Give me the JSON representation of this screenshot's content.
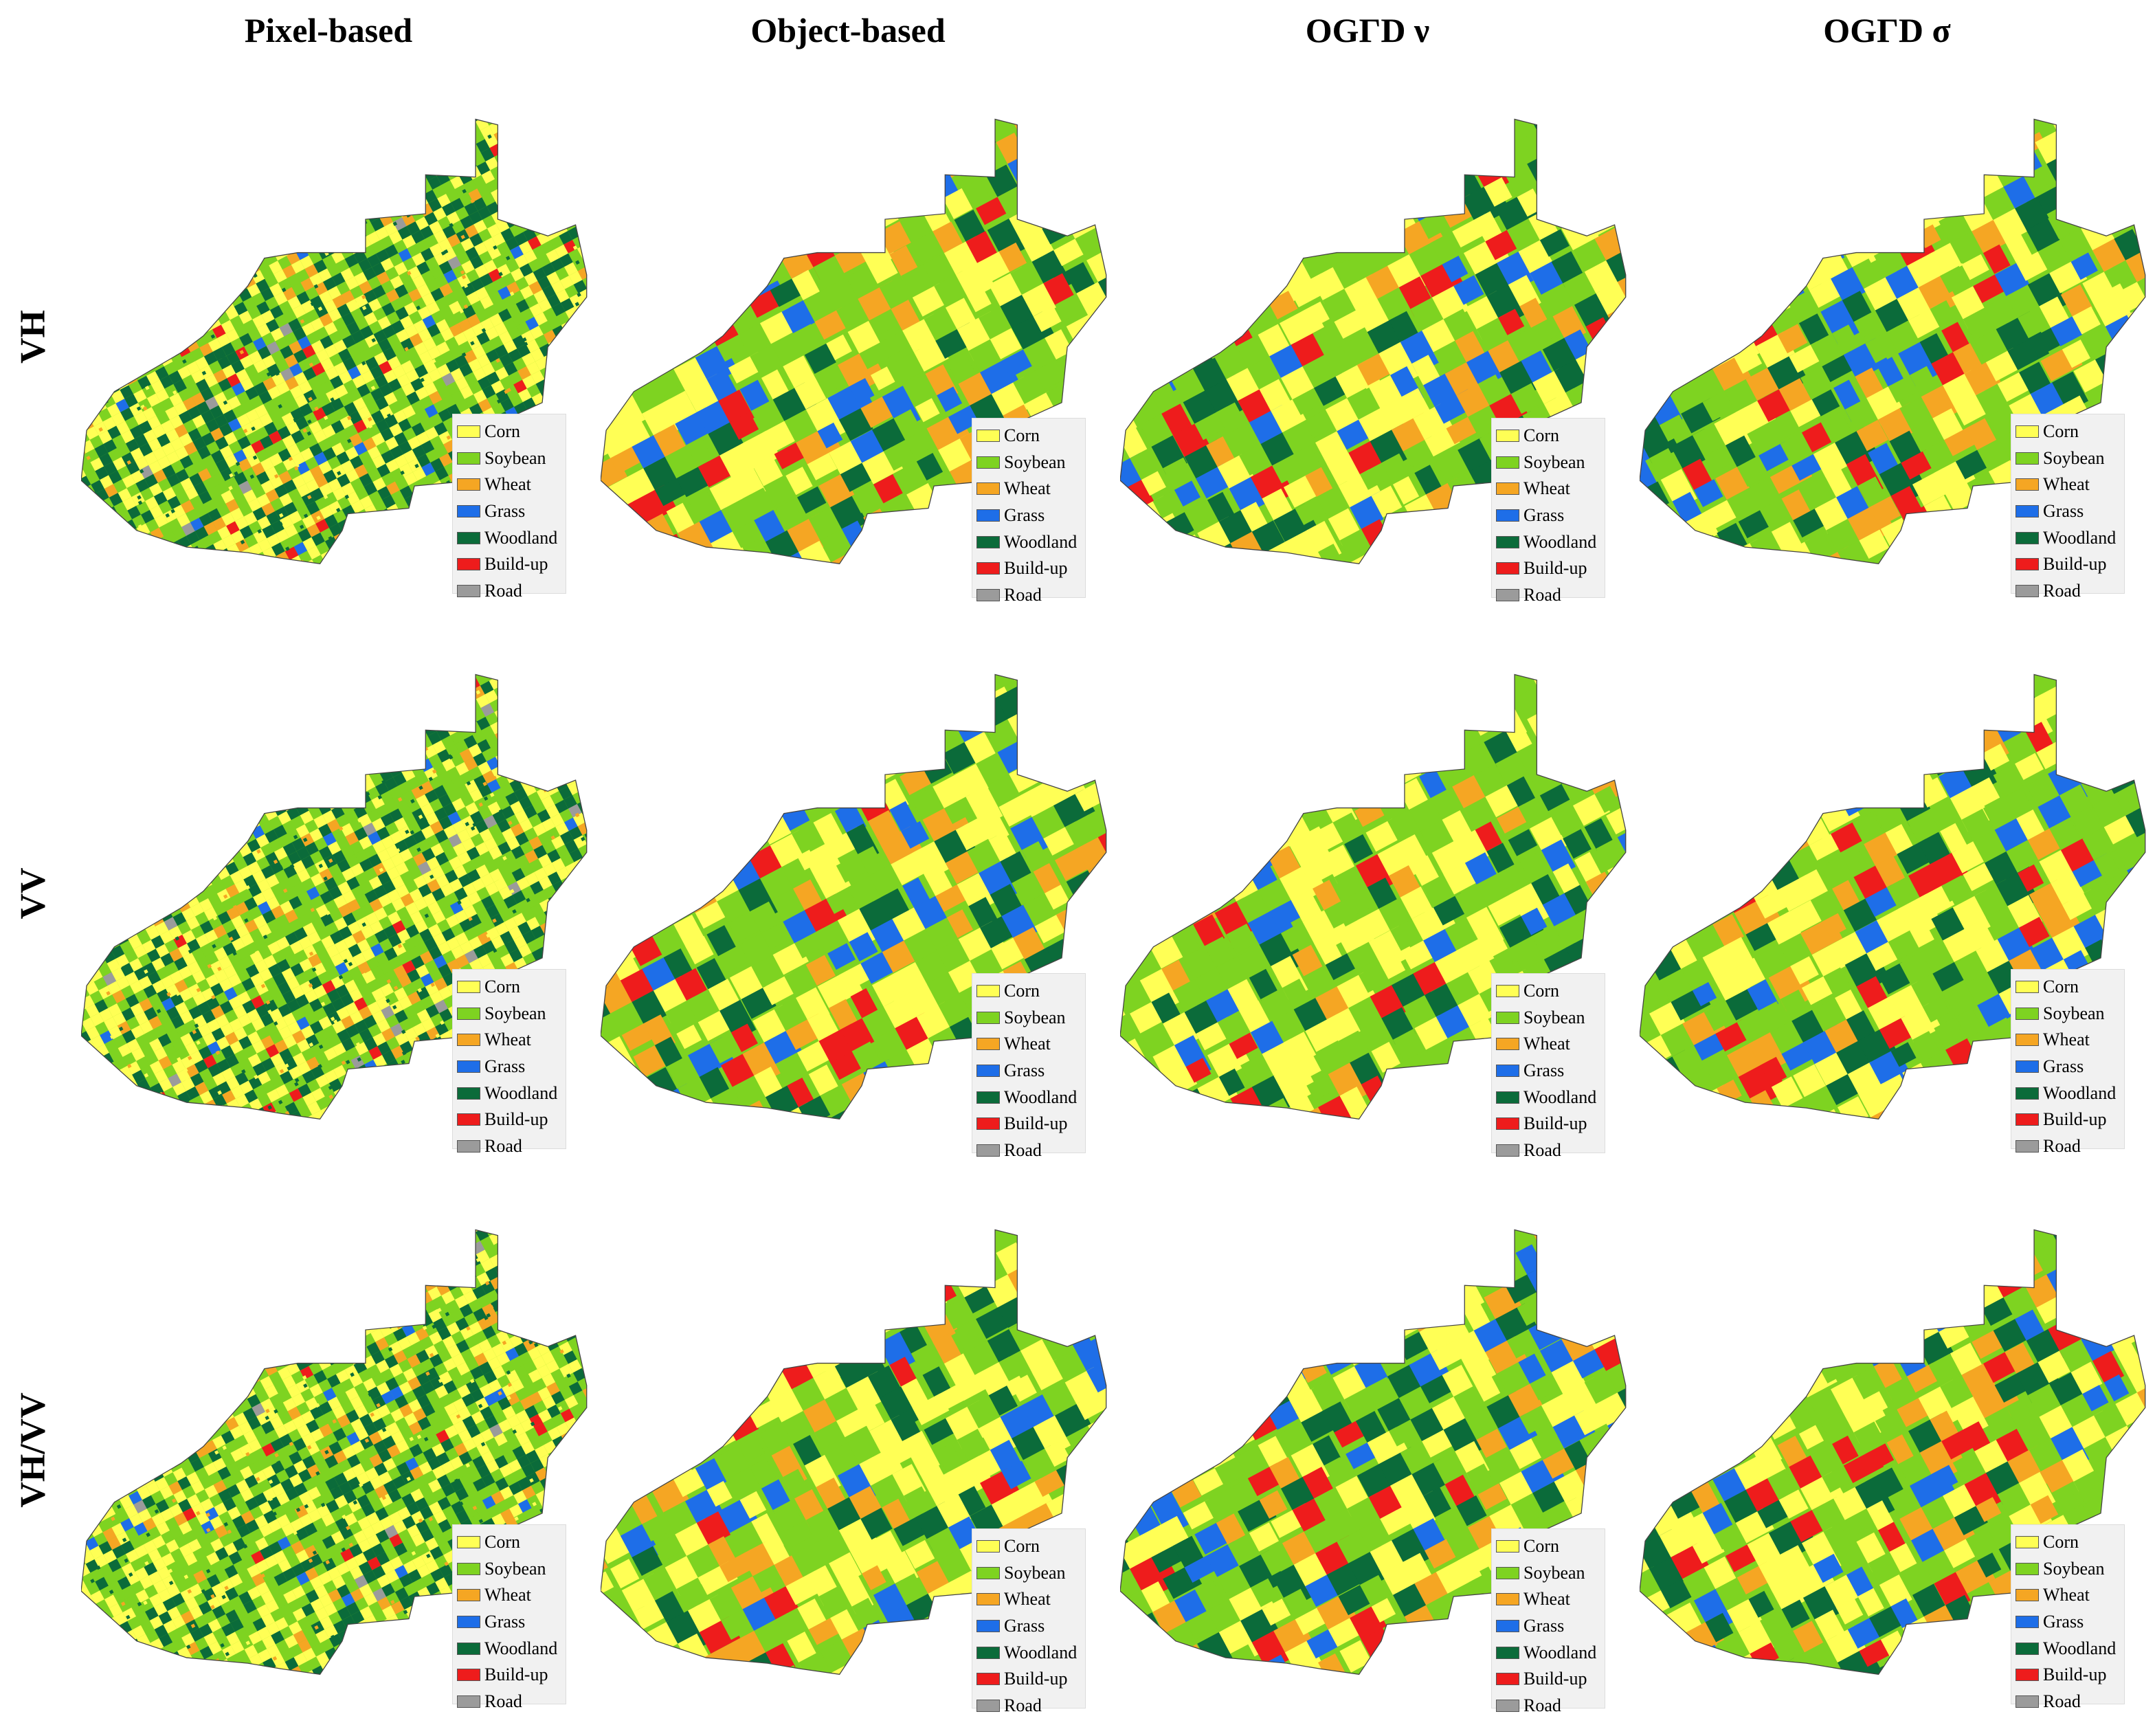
{
  "column_titles": [
    "Pixel-based",
    "Object-based",
    "OGΓD ν",
    "OGΓD σ"
  ],
  "row_titles": [
    "VH",
    "VV",
    "VH/VV"
  ],
  "legend": [
    {
      "label": "Corn",
      "color": "#ffff55"
    },
    {
      "label": "Soybean",
      "color": "#7ed321"
    },
    {
      "label": "Wheat",
      "color": "#f5a623"
    },
    {
      "label": "Grass",
      "color": "#1e6ee8"
    },
    {
      "label": "Woodland",
      "color": "#0b6b3a"
    },
    {
      "label": "Build-up",
      "color": "#ee1c1c"
    },
    {
      "label": "Road",
      "color": "#9b9b9b"
    }
  ],
  "colors": {
    "border": "#444444",
    "background": "#ffffff"
  }
}
